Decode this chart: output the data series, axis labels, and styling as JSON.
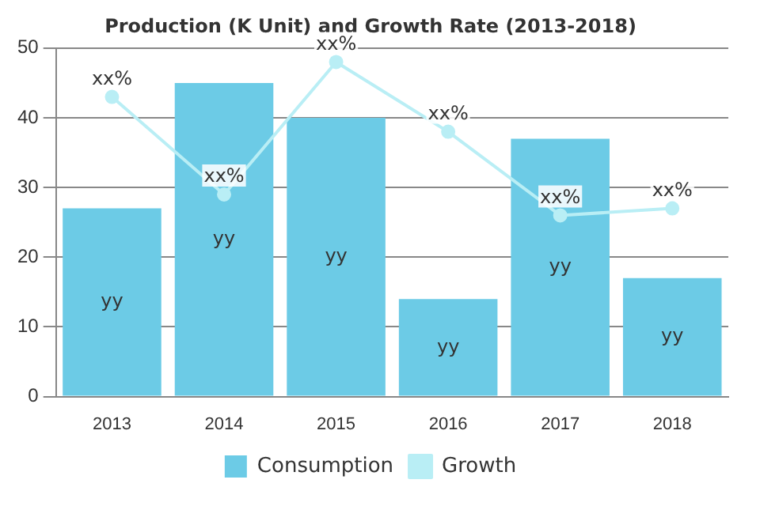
{
  "chart_data": {
    "type": "bar",
    "title": "Production (K Unit) and Growth Rate (2013-2018)",
    "categories": [
      "2013",
      "2014",
      "2015",
      "2016",
      "2017",
      "2018"
    ],
    "series": [
      {
        "name": "Consumption",
        "color": "#6ccbe6",
        "values": [
          27,
          45,
          40,
          14,
          37,
          17
        ],
        "value_labels": [
          "yy",
          "yy",
          "yy",
          "yy",
          "yy",
          "yy"
        ]
      },
      {
        "name": "Growth",
        "type": "line",
        "color": "#b9eef5",
        "values": [
          43,
          29,
          48,
          38,
          26,
          27
        ],
        "value_labels": [
          "xx%",
          "xx%",
          "xx%",
          "xx%",
          "xx%",
          "xx%"
        ]
      }
    ],
    "ylim": [
      0,
      50
    ],
    "yticks": [
      0,
      10,
      20,
      30,
      40,
      50
    ],
    "grid": "y",
    "legend": "bottom",
    "marker": "circle"
  }
}
